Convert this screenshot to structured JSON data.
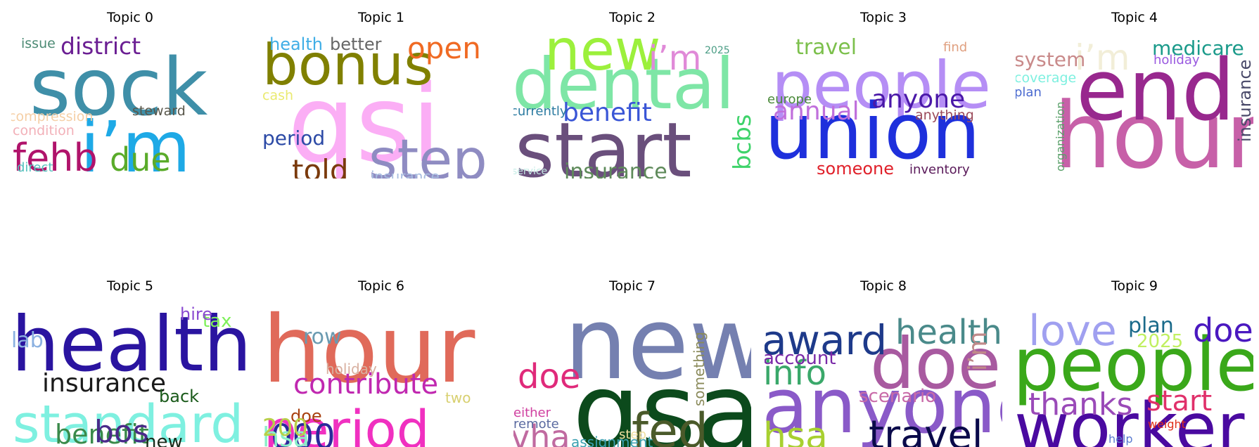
{
  "chart_data": {
    "type": "wordcloud",
    "panels": [
      {
        "title": "Topic 0",
        "words": [
          {
            "text": "sock",
            "color": "#3f8fa8"
          },
          {
            "text": "i’m",
            "color": "#1ea9e6"
          },
          {
            "text": "district",
            "color": "#6b1f93"
          },
          {
            "text": "fehb",
            "color": "#b0136b"
          },
          {
            "text": "due",
            "color": "#5aab2a"
          },
          {
            "text": "issue",
            "color": "#4c8a74"
          },
          {
            "text": "compression",
            "color": "#f5cfa6"
          },
          {
            "text": "condition",
            "color": "#f2b0b8"
          },
          {
            "text": "steward",
            "color": "#58564a"
          },
          {
            "text": "direct",
            "color": "#55c1bd"
          }
        ]
      },
      {
        "title": "Topic 1",
        "words": [
          {
            "text": "qsi",
            "color": "#fbaef5"
          },
          {
            "text": "bonus",
            "color": "#808000"
          },
          {
            "text": "step",
            "color": "#8f8cc2"
          },
          {
            "text": "open",
            "color": "#f06a23"
          },
          {
            "text": "health",
            "color": "#40aee6"
          },
          {
            "text": "better",
            "color": "#666666"
          },
          {
            "text": "cash",
            "color": "#eaea70"
          },
          {
            "text": "period",
            "color": "#2c4aa6"
          },
          {
            "text": "told",
            "color": "#7a3a0c"
          },
          {
            "text": "insurance",
            "color": "#a8bde0"
          }
        ]
      },
      {
        "title": "Topic 2",
        "words": [
          {
            "text": "dental",
            "color": "#7ee6a6"
          },
          {
            "text": "start",
            "color": "#6a4f7c"
          },
          {
            "text": "new",
            "color": "#9cf03c"
          },
          {
            "text": "i’m",
            "color": "#e08ad8"
          },
          {
            "text": "benefit",
            "color": "#3a56d6"
          },
          {
            "text": "insurance",
            "color": "#5e8a5a"
          },
          {
            "text": "bcbs",
            "color": "#3ed36a"
          },
          {
            "text": "2025",
            "color": "#4a9c84"
          },
          {
            "text": "currently",
            "color": "#2a7aa0"
          },
          {
            "text": "service",
            "color": "#c6ece6"
          }
        ]
      },
      {
        "title": "Topic 3",
        "words": [
          {
            "text": "people",
            "color": "#b58ef5"
          },
          {
            "text": "union",
            "color": "#1e30dc"
          },
          {
            "text": "anyone",
            "color": "#4a18a8"
          },
          {
            "text": "annual",
            "color": "#c070dc"
          },
          {
            "text": "travel",
            "color": "#7cc04c"
          },
          {
            "text": "europe",
            "color": "#4a8a3a"
          },
          {
            "text": "find",
            "color": "#e0a080"
          },
          {
            "text": "anything",
            "color": "#9a4a5a"
          },
          {
            "text": "someone",
            "color": "#e0202a"
          },
          {
            "text": "inventory",
            "color": "#5a1a5a"
          }
        ]
      },
      {
        "title": "Topic 4",
        "words": [
          {
            "text": "hour",
            "color": "#c760a8"
          },
          {
            "text": "end",
            "color": "#98288e"
          },
          {
            "text": "i’m",
            "color": "#f2eed8"
          },
          {
            "text": "medicare",
            "color": "#1a9a8a"
          },
          {
            "text": "holiday",
            "color": "#9a5ae0"
          },
          {
            "text": "system",
            "color": "#c98a8a"
          },
          {
            "text": "coverage",
            "color": "#7ef0e0"
          },
          {
            "text": "plan",
            "color": "#4a6ad0"
          },
          {
            "text": "organization",
            "color": "#5aa06a"
          },
          {
            "text": "insurance",
            "color": "#4a4a6a"
          }
        ]
      },
      {
        "title": "Topic 5",
        "words": [
          {
            "text": "health",
            "color": "#2a14a0"
          },
          {
            "text": "standard",
            "color": "#7ef0e0"
          },
          {
            "text": "insurance",
            "color": "#1a1a1a"
          },
          {
            "text": "tax",
            "color": "#7ef05a"
          },
          {
            "text": "hire",
            "color": "#8a4ad0"
          },
          {
            "text": "back",
            "color": "#1a5a1a"
          },
          {
            "text": "benefit",
            "color": "#3a8a4a"
          },
          {
            "text": "bos",
            "color": "#4a2a8a"
          },
          {
            "text": "new",
            "color": "#1a2a1a"
          },
          {
            "text": "lab",
            "color": "#8ab0e0"
          }
        ]
      },
      {
        "title": "Topic 6",
        "words": [
          {
            "text": "hour",
            "color": "#e06a5a"
          },
          {
            "text": "period",
            "color": "#f030c0"
          },
          {
            "text": "contribute",
            "color": "#c028b0"
          },
          {
            "text": "row",
            "color": "#6a9ab0"
          },
          {
            "text": "holiday",
            "color": "#d8b0a0"
          },
          {
            "text": "two",
            "color": "#d8d070"
          },
          {
            "text": "doe",
            "color": "#a84010"
          },
          {
            "text": "000",
            "color": "#2a2a9a"
          },
          {
            "text": "hsa",
            "color": "#8af0c8"
          },
          {
            "text": "200",
            "color": "#b8d048"
          }
        ]
      },
      {
        "title": "Topic 7",
        "words": [
          {
            "text": "new",
            "color": "#7580b0"
          },
          {
            "text": "gsa",
            "color": "#0c4a1c"
          },
          {
            "text": "doe",
            "color": "#e02a7a"
          },
          {
            "text": "fed",
            "color": "#4a5a2a"
          },
          {
            "text": "vha",
            "color": "#c06aa0"
          },
          {
            "text": "something",
            "color": "#8a8a5a"
          },
          {
            "text": "either",
            "color": "#d040a0"
          },
          {
            "text": "remote",
            "color": "#5a6aa0"
          },
          {
            "text": "step",
            "color": "#f0e0a0"
          },
          {
            "text": "assignment",
            "color": "#3aa0b0"
          }
        ]
      },
      {
        "title": "Topic 8",
        "words": [
          {
            "text": "anyone",
            "color": "#8a5ac8"
          },
          {
            "text": "doe",
            "color": "#a85aa0"
          },
          {
            "text": "award",
            "color": "#1e3a8a"
          },
          {
            "text": "health",
            "color": "#4a8a8a"
          },
          {
            "text": "info",
            "color": "#3aa86a"
          },
          {
            "text": "account",
            "color": "#7a2aa8"
          },
          {
            "text": "scenario",
            "color": "#c86aa8"
          },
          {
            "text": "i’m",
            "color": "#c08a8a"
          },
          {
            "text": "hsa",
            "color": "#a8d030"
          },
          {
            "text": "travel",
            "color": "#0a0a4a"
          }
        ]
      },
      {
        "title": "Topic 9",
        "words": [
          {
            "text": "people",
            "color": "#3aa81a"
          },
          {
            "text": "worker",
            "color": "#4a0aa0"
          },
          {
            "text": "love",
            "color": "#a0a0f0"
          },
          {
            "text": "plan",
            "color": "#1a6a8a"
          },
          {
            "text": "doe",
            "color": "#4a18c0"
          },
          {
            "text": "2025",
            "color": "#c0f060"
          },
          {
            "text": "thanks",
            "color": "#9a4ab8"
          },
          {
            "text": "start",
            "color": "#e0306a"
          },
          {
            "text": "weight",
            "color": "#e0301a"
          },
          {
            "text": "help",
            "color": "#5a7ad0"
          }
        ]
      }
    ]
  }
}
